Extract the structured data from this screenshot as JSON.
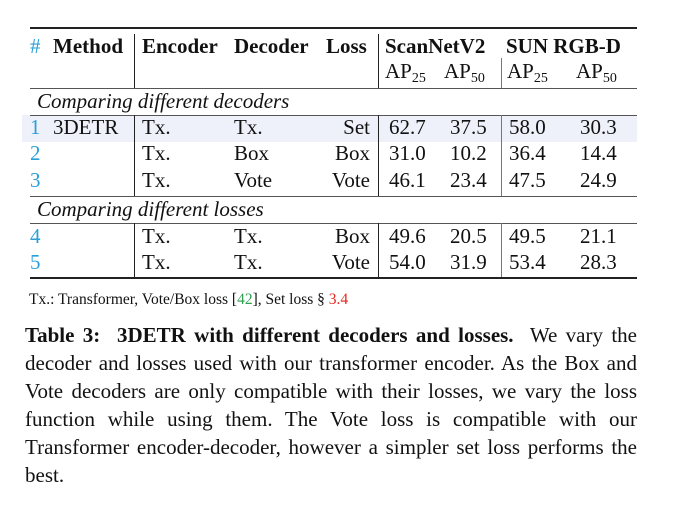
{
  "table": {
    "headers": {
      "num": "#",
      "method": "Method",
      "encoder": "Encoder",
      "decoder": "Decoder",
      "loss": "Loss",
      "dataset1": "ScanNetV2",
      "dataset2": "SUN RGB-D",
      "ap": "AP",
      "sub25": "25",
      "sub50": "50"
    },
    "section1": "Comparing different decoders",
    "section2": "Comparing different losses",
    "rows": [
      {
        "num": "1",
        "method": "3DETR",
        "encoder": "Tx.",
        "decoder": "Tx.",
        "loss": "Set",
        "scan_ap25": "62.7",
        "scan_ap50": "37.5",
        "sun_ap25": "58.0",
        "sun_ap50": "30.3",
        "highlighted": true
      },
      {
        "num": "2",
        "method": "",
        "encoder": "Tx.",
        "decoder": "Box",
        "loss": "Box",
        "scan_ap25": "31.0",
        "scan_ap50": "10.2",
        "sun_ap25": "36.4",
        "sun_ap50": "14.4"
      },
      {
        "num": "3",
        "method": "",
        "encoder": "Tx.",
        "decoder": "Vote",
        "loss": "Vote",
        "scan_ap25": "46.1",
        "scan_ap50": "23.4",
        "sun_ap25": "47.5",
        "sun_ap50": "24.9"
      },
      {
        "num": "4",
        "method": "",
        "encoder": "Tx.",
        "decoder": "Tx.",
        "loss": "Box",
        "scan_ap25": "49.6",
        "scan_ap50": "20.5",
        "sun_ap25": "49.5",
        "sun_ap50": "21.1"
      },
      {
        "num": "5",
        "method": "",
        "encoder": "Tx.",
        "decoder": "Tx.",
        "loss": "Vote",
        "scan_ap25": "54.0",
        "scan_ap50": "31.9",
        "sun_ap25": "53.4",
        "sun_ap50": "28.3"
      }
    ]
  },
  "footnote": {
    "text1": "Tx.: Transformer, Vote/Box loss [",
    "cite": "42",
    "text2": "], Set loss § ",
    "ref": "3.4"
  },
  "caption": {
    "label": "Table 3:",
    "title": "3DETR with different decoders and losses.",
    "body": "We vary the decoder and losses used with our transformer encoder. As the Box and Vote decoders are only compatible with their losses, we vary the loss function while using them. The Vote loss is compatible with our Transformer encoder-decoder, however a simpler set loss performs the best."
  },
  "colors": {
    "row_number": "#2a9fd8",
    "highlight": "#eef0fa",
    "citation": "#2e9e4f",
    "reference": "#e8231e"
  }
}
